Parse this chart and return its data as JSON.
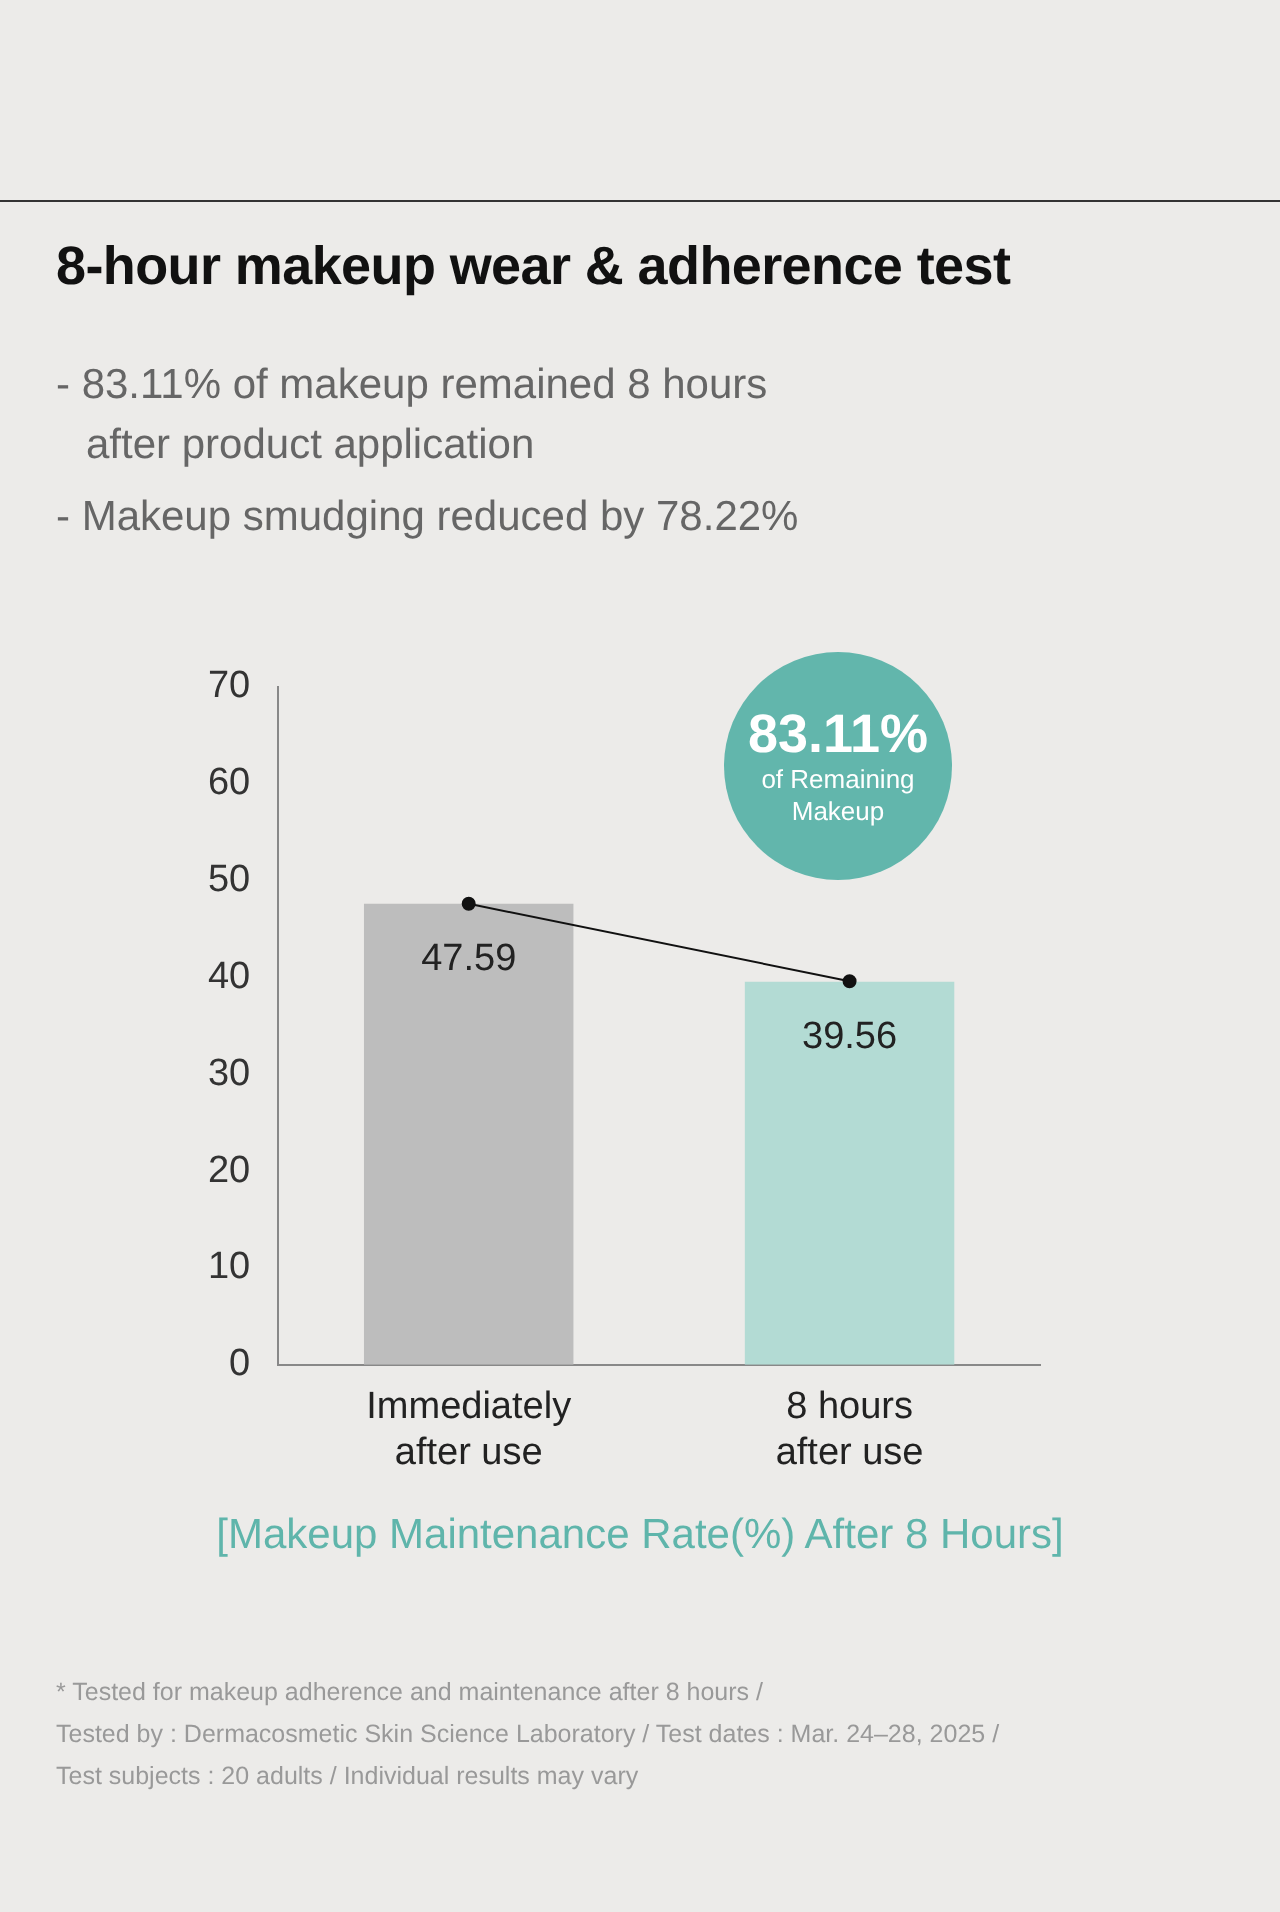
{
  "chart_data": {
    "type": "bar",
    "title": "8-hour makeup wear & adherence test",
    "subtitle": "- 83.11% of makeup remained 8 hours after product application\n- Makeup smudging reduced by 78.22%",
    "xlabel": "[Makeup Maintenance Rate(%) After 8 Hours]",
    "categories": [
      "Immediately\nafter use",
      "8 hours\nafter use"
    ],
    "series": [
      {
        "colors": [
          "#bdbdbd",
          "#b3dbd4"
        ],
        "values": [
          47.59,
          39.56
        ],
        "value_labels": [
          "47.59",
          "39.56"
        ]
      },
      {
        "type": "line",
        "color": "#111111",
        "values": [
          47.6,
          39.6
        ]
      }
    ],
    "ylim": [
      0,
      70
    ],
    "yticks": [
      0,
      10,
      20,
      30,
      40,
      50,
      60,
      70
    ],
    "grid": false,
    "legend": false,
    "marker": "circle",
    "annotations": [
      "83.11%\nof Remaining\nMakeup",
      "* Tested for makeup adherence and maintenance after 8 hours /\nTested by : Dermacosmetic Skin Science Laboratory / Test dates : Mar. 24–28, 2025 /\nTest subjects : 20 adults / Individual results may vary"
    ]
  }
}
